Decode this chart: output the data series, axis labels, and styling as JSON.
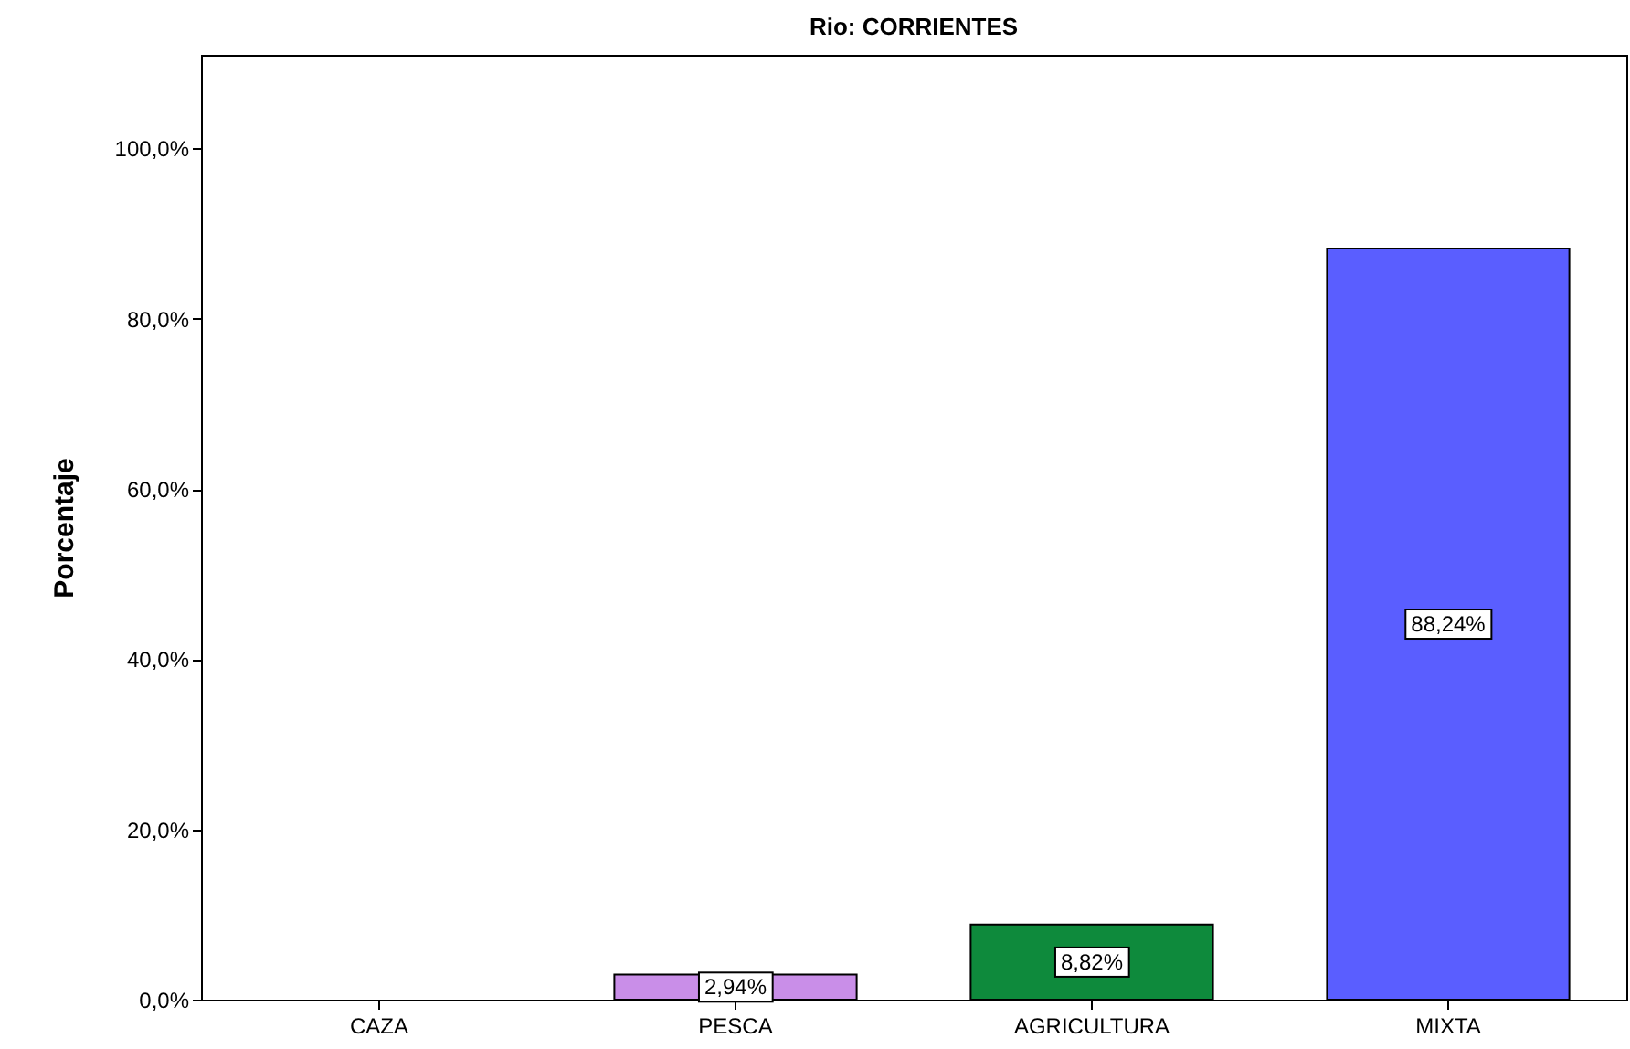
{
  "chart_data": {
    "type": "bar",
    "title": "Rio: CORRIENTES",
    "ylabel": "Porcentaje",
    "categories": [
      "CAZA",
      "PESCA",
      "AGRICULTURA",
      "MIXTA"
    ],
    "values": [
      0,
      2.94,
      8.82,
      88.24
    ],
    "colors": [
      "#5a5eff",
      "#c98ee8",
      "#0e8a3c",
      "#5a5eff"
    ],
    "value_labels": [
      null,
      "2,94%",
      "8,82%",
      "88,24%"
    ],
    "ylim": [
      0,
      111
    ],
    "yticks": [
      {
        "value": 0,
        "label": "0,0%"
      },
      {
        "value": 20,
        "label": "20,0%"
      },
      {
        "value": 40,
        "label": "40,0%"
      },
      {
        "value": 60,
        "label": "60,0%"
      },
      {
        "value": 80,
        "label": "80,0%"
      },
      {
        "value": 100,
        "label": "100,0%"
      }
    ]
  }
}
